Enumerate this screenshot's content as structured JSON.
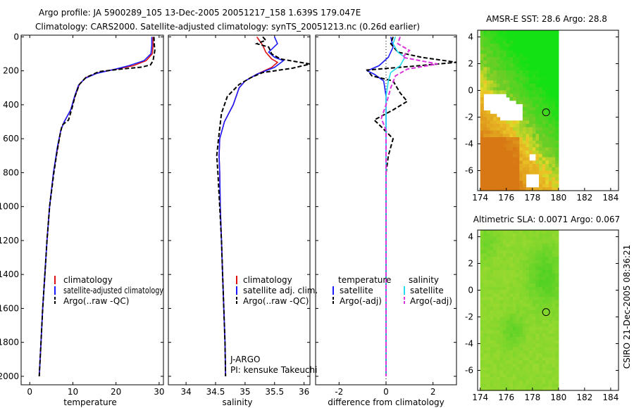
{
  "header": {
    "line1": "Argo profile: JA 5900289_105 13-Dec-2005 20051217_158 1.639S 179.047E",
    "line2": "Climatology: CARS2000. Satellite-adjusted climatology: synTS_20051213.nc (0.26d earlier)"
  },
  "side_label": "CSIRO 21-Dec-2005 08:36:21",
  "colors": {
    "clim": "#dd1111",
    "sat_adj": "#1a1aff",
    "argo": "#000000",
    "sal_sat": "#22ddee",
    "sal_argo": "#dd33dd"
  },
  "chart_data": [
    {
      "id": "temperature",
      "type": "line",
      "xlabel": "temperature",
      "ylabel": "",
      "xlim": [
        -2,
        31
      ],
      "ylim": [
        2050,
        -10
      ],
      "xticks": [
        0,
        10,
        20,
        30
      ],
      "yticks": [
        0,
        200,
        400,
        600,
        800,
        1000,
        1200,
        1400,
        1600,
        1800,
        2000
      ],
      "series": [
        {
          "name": "climatology",
          "style": "solid",
          "color_key": "clim",
          "points": [
            [
              28.6,
              0
            ],
            [
              28.6,
              50
            ],
            [
              28.4,
              100
            ],
            [
              27,
              140
            ],
            [
              24,
              170
            ],
            [
              20,
              190
            ],
            [
              16,
              210
            ],
            [
              13,
              240
            ],
            [
              11.5,
              280
            ],
            [
              10.5,
              350
            ],
            [
              9.5,
              430
            ],
            [
              8,
              500
            ],
            [
              7.2,
              550
            ],
            [
              6.5,
              650
            ],
            [
              5.5,
              800
            ],
            [
              4.6,
              1000
            ],
            [
              4,
              1200
            ],
            [
              3.5,
              1400
            ],
            [
              3,
              1600
            ],
            [
              2.6,
              1800
            ],
            [
              2.2,
              2000
            ]
          ]
        },
        {
          "name": "satellite-adjusted climatology",
          "style": "solid",
          "color_key": "sat_adj",
          "points": [
            [
              28.3,
              0
            ],
            [
              28.3,
              50
            ],
            [
              28.1,
              100
            ],
            [
              26.5,
              140
            ],
            [
              23,
              170
            ],
            [
              19,
              195
            ],
            [
              15.5,
              215
            ],
            [
              12.8,
              245
            ],
            [
              11.3,
              285
            ],
            [
              10.4,
              350
            ],
            [
              9.5,
              430
            ],
            [
              8,
              500
            ],
            [
              7.2,
              550
            ],
            [
              6.4,
              650
            ],
            [
              5.5,
              800
            ],
            [
              4.6,
              1000
            ],
            [
              4,
              1200
            ],
            [
              3.5,
              1400
            ],
            [
              3,
              1600
            ],
            [
              2.6,
              1800
            ],
            [
              2.2,
              2000
            ]
          ]
        },
        {
          "name": "Argo(..raw -QC)",
          "style": "dashed",
          "color_key": "argo",
          "points": [
            [
              28.8,
              0
            ],
            [
              28.9,
              50
            ],
            [
              29,
              80
            ],
            [
              28.8,
              110
            ],
            [
              28.6,
              140
            ],
            [
              28,
              165
            ],
            [
              26,
              178
            ],
            [
              21,
              190
            ],
            [
              16,
              205
            ],
            [
              13,
              240
            ],
            [
              11.5,
              280
            ],
            [
              10.5,
              350
            ],
            [
              9.8,
              420
            ],
            [
              9,
              490
            ],
            [
              7.5,
              520
            ],
            [
              7,
              580
            ],
            [
              6.3,
              680
            ],
            [
              5.6,
              800
            ],
            [
              4.6,
              1000
            ],
            [
              4,
              1200
            ],
            [
              3.5,
              1400
            ],
            [
              3,
              1600
            ],
            [
              2.6,
              1800
            ],
            [
              2.2,
              2000
            ]
          ]
        }
      ],
      "legend": {
        "position": "bottom-right",
        "entries": [
          {
            "label": "climatology",
            "color_key": "clim",
            "style": "solid"
          },
          {
            "label": "satellite-adjusted climatology",
            "color_key": "sat_adj",
            "style": "solid"
          },
          {
            "label": "Argo(..raw -QC)",
            "color_key": "argo",
            "style": "dashed"
          }
        ]
      }
    },
    {
      "id": "salinity",
      "type": "line",
      "xlabel": "salinity",
      "ylabel": "",
      "xlim": [
        33.7,
        36.1
      ],
      "ylim": [
        2050,
        -10
      ],
      "xticks": [
        34,
        34.5,
        35,
        35.5,
        36
      ],
      "yticks": [
        0,
        200,
        400,
        600,
        800,
        1000,
        1200,
        1400,
        1600,
        1800,
        2000
      ],
      "series": [
        {
          "name": "climatology",
          "style": "solid",
          "color_key": "clim",
          "points": [
            [
              35.2,
              0
            ],
            [
              35.3,
              50
            ],
            [
              35.35,
              90
            ],
            [
              35.45,
              130
            ],
            [
              35.55,
              150
            ],
            [
              35.45,
              180
            ],
            [
              35.2,
              220
            ],
            [
              35,
              260
            ],
            [
              34.9,
              300
            ],
            [
              34.8,
              400
            ],
            [
              34.65,
              500
            ],
            [
              34.57,
              600
            ],
            [
              34.56,
              700
            ],
            [
              34.57,
              800
            ],
            [
              34.58,
              1000
            ],
            [
              34.6,
              1200
            ],
            [
              34.62,
              1400
            ],
            [
              34.64,
              1600
            ],
            [
              34.66,
              1800
            ],
            [
              34.67,
              2000
            ]
          ]
        },
        {
          "name": "satellite adj. clim.",
          "style": "solid",
          "color_key": "sat_adj",
          "points": [
            [
              35.5,
              0
            ],
            [
              35.55,
              40
            ],
            [
              35.4,
              90
            ],
            [
              35.5,
              120
            ],
            [
              35.65,
              140
            ],
            [
              35.5,
              180
            ],
            [
              35.2,
              220
            ],
            [
              35,
              260
            ],
            [
              34.9,
              300
            ],
            [
              34.8,
              400
            ],
            [
              34.65,
              500
            ],
            [
              34.57,
              600
            ],
            [
              34.56,
              700
            ],
            [
              34.57,
              800
            ],
            [
              34.58,
              1000
            ],
            [
              34.6,
              1200
            ],
            [
              34.62,
              1400
            ],
            [
              34.64,
              1600
            ],
            [
              34.66,
              1800
            ],
            [
              34.67,
              2000
            ]
          ]
        },
        {
          "name": "Argo(..raw -QC)",
          "style": "dashed",
          "color_key": "argo",
          "points": [
            [
              35.3,
              0
            ],
            [
              35.35,
              20
            ],
            [
              35.2,
              40
            ],
            [
              35.4,
              60
            ],
            [
              35.45,
              100
            ],
            [
              35.6,
              130
            ],
            [
              36.1,
              160
            ],
            [
              35.8,
              185
            ],
            [
              35.3,
              210
            ],
            [
              35.1,
              240
            ],
            [
              34.9,
              280
            ],
            [
              34.7,
              350
            ],
            [
              34.6,
              450
            ],
            [
              34.55,
              600
            ],
            [
              34.52,
              700
            ],
            [
              34.54,
              800
            ],
            [
              34.57,
              1000
            ],
            [
              34.6,
              1200
            ],
            [
              34.62,
              1400
            ],
            [
              34.64,
              1600
            ],
            [
              34.66,
              1800
            ],
            [
              34.67,
              2000
            ]
          ]
        }
      ],
      "legend": {
        "position": "bottom-right",
        "entries": [
          {
            "label": "climatology",
            "color_key": "clim",
            "style": "solid"
          },
          {
            "label": "satellite adj. clim.",
            "color_key": "sat_adj",
            "style": "solid"
          },
          {
            "label": "Argo(..raw -QC)",
            "color_key": "argo",
            "style": "dashed"
          }
        ]
      },
      "annotation": [
        "J-ARGO",
        "PI: kensuke Takeuchi"
      ]
    },
    {
      "id": "difference",
      "type": "line",
      "xlabel": "difference from climatology",
      "ylabel": "",
      "xlim": [
        -3,
        3
      ],
      "ylim": [
        2050,
        -10
      ],
      "xticks": [
        -2,
        0,
        2
      ],
      "yticks": [
        0,
        200,
        400,
        600,
        800,
        1000,
        1200,
        1400,
        1600,
        1800,
        2000
      ],
      "series": [
        {
          "name": "temperature satellite",
          "style": "solid",
          "color_key": "sat_adj",
          "points": [
            [
              0.2,
              0
            ],
            [
              0.3,
              60
            ],
            [
              0.1,
              120
            ],
            [
              -0.3,
              170
            ],
            [
              -0.8,
              200
            ],
            [
              -0.5,
              220
            ],
            [
              -0.1,
              260
            ],
            [
              0,
              350
            ],
            [
              0,
              500
            ],
            [
              0,
              2000
            ]
          ]
        },
        {
          "name": "temperature Argo(-adj)",
          "style": "dashed",
          "color_key": "argo",
          "points": [
            [
              0.3,
              0
            ],
            [
              0.2,
              40
            ],
            [
              0.5,
              90
            ],
            [
              1.5,
              120
            ],
            [
              3,
              150
            ],
            [
              1,
              175
            ],
            [
              -0.8,
              195
            ],
            [
              -0.6,
              230
            ],
            [
              0.3,
              260
            ],
            [
              0.6,
              330
            ],
            [
              0.9,
              380
            ],
            [
              0.3,
              430
            ],
            [
              -0.5,
              490
            ],
            [
              -0.2,
              530
            ],
            [
              0.3,
              600
            ],
            [
              0.1,
              700
            ],
            [
              0,
              800
            ],
            [
              0,
              1000
            ],
            [
              0,
              2000
            ]
          ]
        },
        {
          "name": "salinity satellite",
          "style": "solid",
          "color_key": "sal_sat",
          "points": [
            [
              0.4,
              0
            ],
            [
              0.3,
              40
            ],
            [
              0.5,
              90
            ],
            [
              0.8,
              120
            ],
            [
              0.6,
              170
            ],
            [
              0.2,
              210
            ],
            [
              0.1,
              260
            ],
            [
              0,
              350
            ],
            [
              0,
              600
            ],
            [
              0,
              2000
            ]
          ]
        },
        {
          "name": "salinity Argo(-adj)",
          "style": "dashed",
          "color_key": "sal_argo",
          "points": [
            [
              0.6,
              0
            ],
            [
              0.5,
              40
            ],
            [
              1.0,
              80
            ],
            [
              0.7,
              120
            ],
            [
              2.2,
              160
            ],
            [
              0.9,
              190
            ],
            [
              0.4,
              230
            ],
            [
              0.2,
              300
            ],
            [
              0,
              400
            ],
            [
              -0.2,
              480
            ],
            [
              0,
              550
            ],
            [
              0,
              2000
            ]
          ]
        }
      ],
      "legend": {
        "position": "bottom",
        "groups": [
          {
            "title": "temperature",
            "entries": [
              {
                "label": "satellite",
                "color_key": "sat_adj",
                "style": "solid"
              },
              {
                "label": "Argo(-adj)",
                "color_key": "argo",
                "style": "dashed"
              }
            ]
          },
          {
            "title": "salinity",
            "entries": [
              {
                "label": "satellite",
                "color_key": "sal_sat",
                "style": "solid"
              },
              {
                "label": "Argo(-adj)",
                "color_key": "sal_argo",
                "style": "dashed"
              }
            ]
          }
        ]
      }
    },
    {
      "id": "amsr_sst_map",
      "type": "heatmap",
      "title": "AMSR-E SST: 28.6 Argo: 28.8",
      "xlim": [
        173.8,
        184.6
      ],
      "ylim": [
        -7.5,
        4.5
      ],
      "xticks": [
        174,
        176,
        178,
        180,
        182,
        184
      ],
      "yticks": [
        4,
        2,
        0,
        -2,
        -4,
        -6
      ],
      "data_extent_lon": [
        174,
        180
      ],
      "float_position": [
        179.047,
        -1.639
      ]
    },
    {
      "id": "altimetric_sla_map",
      "type": "heatmap",
      "title": "Altimetric SLA: 0.0071 Argo: 0.067",
      "xlim": [
        173.8,
        184.6
      ],
      "ylim": [
        -7.5,
        4.5
      ],
      "xticks": [
        174,
        176,
        178,
        180,
        182,
        184
      ],
      "yticks": [
        4,
        2,
        0,
        -2,
        -4,
        -6
      ],
      "data_extent_lon": [
        174,
        180
      ],
      "float_position": [
        179.047,
        -1.639
      ]
    }
  ]
}
